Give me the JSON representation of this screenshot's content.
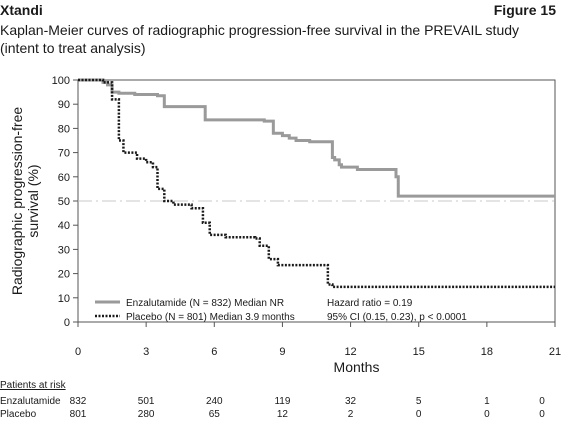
{
  "header": {
    "drug": "Xtandi",
    "figure": "Figure 15"
  },
  "title": "Kaplan-Meier curves of radiographic progression-free survival in the PREVAIL study (intent to treat analysis)",
  "chart_data": {
    "type": "line",
    "title": "Kaplan-Meier curves of radiographic progression-free survival in the PREVAIL study (intent to treat analysis)",
    "xlabel": "Months",
    "ylabel": "Radiographic progression-free survival (%)",
    "xlim": [
      0,
      21
    ],
    "ylim": [
      0,
      100
    ],
    "xticks": [
      0,
      3,
      6,
      9,
      12,
      15,
      18,
      21
    ],
    "yticks": [
      0,
      10,
      20,
      30,
      40,
      50,
      60,
      70,
      80,
      90,
      100
    ],
    "reference_line": {
      "y": 50,
      "style": "dash-dot"
    },
    "series": [
      {
        "name": "Enzalutamide (N = 832) Median NR",
        "style": "solid",
        "color": "#9a9a9a",
        "x": [
          0,
          1.1,
          1.3,
          1.5,
          1.8,
          2.5,
          3.5,
          3.8,
          5.3,
          5.6,
          7.5,
          8.2,
          8.6,
          9.0,
          9.3,
          9.6,
          10.2,
          11.0,
          11.2,
          11.3,
          11.5,
          11.6,
          12.3,
          13.9,
          14.0,
          14.1,
          21
        ],
        "y": [
          100,
          99,
          98,
          95,
          94.5,
          94,
          93.5,
          89,
          89,
          83.5,
          83.5,
          83,
          78,
          77,
          76,
          75,
          74.5,
          74.5,
          68,
          67,
          65,
          64,
          63,
          63,
          60,
          52,
          52
        ]
      },
      {
        "name": "Placebo (N = 801) Median 3.9 months",
        "style": "dotted",
        "color": "#1a1a1a",
        "x": [
          0,
          1.1,
          1.5,
          1.8,
          2.0,
          2.6,
          3.0,
          3.3,
          3.5,
          3.8,
          4.2,
          5.0,
          5.5,
          5.8,
          6.5,
          7.8,
          8.0,
          8.4,
          8.8,
          9.5,
          10.0,
          10.8,
          11.0,
          11.2,
          12.0,
          13.0,
          21
        ],
        "y": [
          100,
          99,
          92,
          75,
          70,
          67.5,
          66,
          64,
          55,
          50,
          48.5,
          47,
          41,
          36,
          35,
          34.5,
          31.5,
          26,
          23.5,
          23.5,
          23.5,
          23.5,
          15.5,
          14.5,
          14.5,
          14.5,
          14.5
        ]
      }
    ],
    "legend": {
      "position": "bottom-left",
      "entries": [
        "Enzalutamide (N = 832) Median NR",
        "Placebo (N = 801) Median 3.9 months"
      ]
    },
    "annotations": [
      "Hazard ratio = 0.19",
      "95% CI (0.15, 0.23), p < 0.0001"
    ]
  },
  "risk_table": {
    "heading": "Patients at risk",
    "timepoints": [
      0,
      3,
      6,
      9,
      12,
      15,
      18,
      21
    ],
    "rows": [
      {
        "label": "Enzalutamide",
        "values": [
          "832",
          "501",
          "240",
          "119",
          "32",
          "5",
          "1",
          "0"
        ]
      },
      {
        "label": "Placebo",
        "values": [
          "801",
          "280",
          "65",
          "12",
          "2",
          "0",
          "0",
          "0"
        ]
      }
    ]
  }
}
